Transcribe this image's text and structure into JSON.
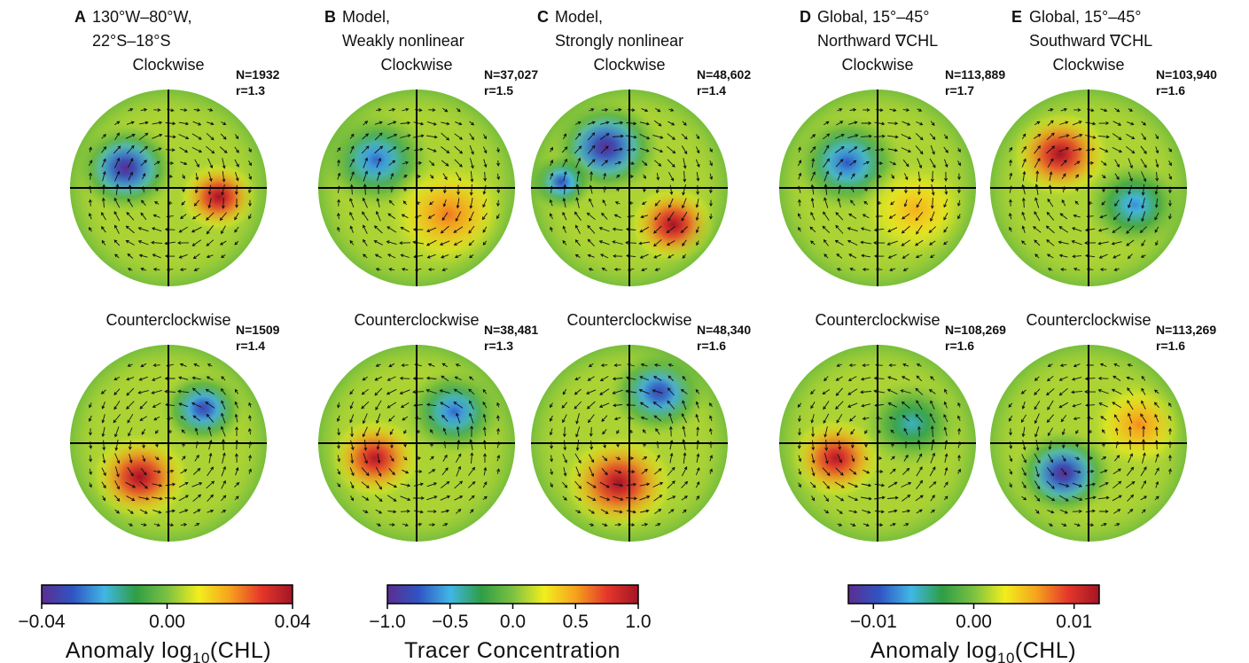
{
  "chart_data": {
    "type": "heatmap",
    "columns": [
      {
        "id": "A",
        "title_lines": [
          "130°W–80°W,",
          "22°S–18°S"
        ],
        "colorbar": 0
      },
      {
        "id": "B",
        "title_lines": [
          "Model,",
          "Weakly nonlinear"
        ],
        "colorbar": 1
      },
      {
        "id": "C",
        "title_lines": [
          "Model,",
          "Strongly nonlinear"
        ],
        "colorbar": 1
      },
      {
        "id": "D",
        "title_lines": [
          "Global, 15°–45°",
          "Northward ∇CHL"
        ],
        "colorbar": 2
      },
      {
        "id": "E",
        "title_lines": [
          "Global, 15°–45°",
          "Southward ∇CHL"
        ],
        "colorbar": 2
      }
    ],
    "rows": [
      "Clockwise",
      "Counterclockwise"
    ],
    "panels": [
      {
        "col": "A",
        "row": "Clockwise",
        "N": "N=1932",
        "r": "r=1.3",
        "blobs": [
          {
            "az": 155,
            "dist": 0.48,
            "value": -1.0,
            "width": 0.46
          },
          {
            "az": -10,
            "dist": 0.52,
            "value": 1.0,
            "width": 0.36
          }
        ]
      },
      {
        "col": "B",
        "row": "Clockwise",
        "N": "N=37,027",
        "r": "r=1.5",
        "blobs": [
          {
            "az": 145,
            "dist": 0.5,
            "value": -0.7,
            "width": 0.5
          },
          {
            "az": -40,
            "dist": 0.42,
            "value": 0.6,
            "width": 0.55
          }
        ]
      },
      {
        "col": "C",
        "row": "Clockwise",
        "N": "N=48,602",
        "r": "r=1.4",
        "blobs": [
          {
            "az": 120,
            "dist": 0.48,
            "value": -1.0,
            "width": 0.5
          },
          {
            "az": 175,
            "dist": 0.7,
            "value": -0.8,
            "width": 0.3
          },
          {
            "az": -40,
            "dist": 0.58,
            "value": 1.0,
            "width": 0.4
          }
        ]
      },
      {
        "col": "D",
        "row": "Clockwise",
        "N": "N=113,889",
        "r": "r=1.7",
        "blobs": [
          {
            "az": 140,
            "dist": 0.4,
            "value": -0.75,
            "width": 0.5
          },
          {
            "az": -30,
            "dist": 0.45,
            "value": 0.45,
            "width": 0.5
          }
        ]
      },
      {
        "col": "E",
        "row": "Clockwise",
        "N": "N=103,940",
        "r": "r=1.6",
        "blobs": [
          {
            "az": 130,
            "dist": 0.45,
            "value": 1.0,
            "width": 0.45
          },
          {
            "az": -20,
            "dist": 0.5,
            "value": -0.6,
            "width": 0.45
          }
        ]
      },
      {
        "col": "A",
        "row": "Counterclockwise",
        "N": "N=1509",
        "r": "r=1.4",
        "blobs": [
          {
            "az": 45,
            "dist": 0.5,
            "value": -0.85,
            "width": 0.38
          },
          {
            "az": -130,
            "dist": 0.45,
            "value": 1.0,
            "width": 0.45
          }
        ]
      },
      {
        "col": "B",
        "row": "Counterclockwise",
        "N": "N=38,481",
        "r": "r=1.3",
        "blobs": [
          {
            "az": 40,
            "dist": 0.5,
            "value": -0.7,
            "width": 0.45
          },
          {
            "az": -160,
            "dist": 0.45,
            "value": 0.95,
            "width": 0.42
          }
        ]
      },
      {
        "col": "C",
        "row": "Counterclockwise",
        "N": "N=48,340",
        "r": "r=1.6",
        "blobs": [
          {
            "az": 60,
            "dist": 0.6,
            "value": -0.85,
            "width": 0.45
          },
          {
            "az": -105,
            "dist": 0.42,
            "value": 1.0,
            "width": 0.5
          }
        ]
      },
      {
        "col": "D",
        "row": "Counterclockwise",
        "N": "N=108,269",
        "r": "r=1.6",
        "blobs": [
          {
            "az": -160,
            "dist": 0.45,
            "value": 0.95,
            "width": 0.42
          },
          {
            "az": 30,
            "dist": 0.4,
            "value": -0.45,
            "width": 0.45
          }
        ]
      },
      {
        "col": "E",
        "row": "Counterclockwise",
        "N": "N=113,269",
        "r": "r=1.6",
        "blobs": [
          {
            "az": -130,
            "dist": 0.4,
            "value": -1.0,
            "width": 0.45
          },
          {
            "az": 20,
            "dist": 0.55,
            "value": 0.55,
            "width": 0.45
          }
        ]
      }
    ],
    "colorbars": [
      {
        "label": "Anomaly log",
        "label_sub": "10",
        "label_tail": "(CHL)",
        "ticks": [
          "−0.04",
          "0.00",
          "0.04"
        ],
        "range": [
          -0.04,
          0.04
        ]
      },
      {
        "label": "Tracer Concentration",
        "label_sub": "",
        "label_tail": "",
        "ticks": [
          "−1.0",
          "−0.5",
          "0.0",
          "0.5",
          "1.0"
        ],
        "range": [
          -1.0,
          1.0
        ]
      },
      {
        "label": "Anomaly log",
        "label_sub": "10",
        "label_tail": "(CHL)",
        "ticks": [
          "−0.01",
          "0.00",
          "0.01"
        ],
        "range": [
          -0.0125,
          0.0125
        ]
      }
    ],
    "colormap": [
      "#5b2d90",
      "#2f55c4",
      "#41b6e6",
      "#2e9e45",
      "#7cc142",
      "#f2ee1e",
      "#f6a21d",
      "#e5372b",
      "#a31525"
    ]
  }
}
